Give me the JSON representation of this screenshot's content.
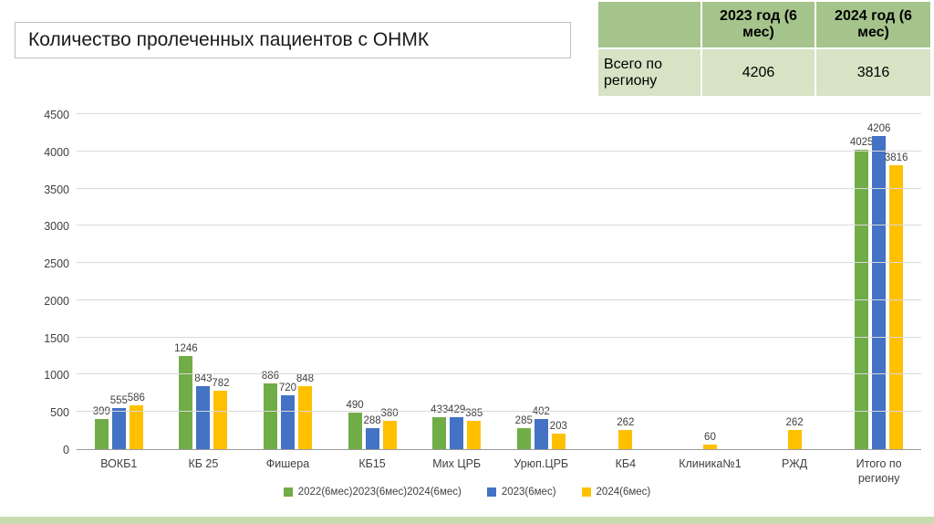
{
  "title": "Количество пролеченных пациентов с ОНМК",
  "table": {
    "headers": [
      "2023 год (6 мес)",
      "2024 год (6 мес)"
    ],
    "row_label": "Всего по региону",
    "values": [
      "4206",
      "3816"
    ]
  },
  "chart_data": {
    "type": "bar",
    "categories": [
      "ВОКБ1",
      "КБ 25",
      "Фишера",
      "КБ15",
      "Мих ЦРБ",
      "Урюп.ЦРБ",
      "КБ4",
      "Клиника№1",
      "РЖД",
      "Итого по региону"
    ],
    "series": [
      {
        "name": "2022(6мес)2023(6мес)2024(6мес)",
        "color": "#70AD47",
        "values": [
          399,
          1246,
          886,
          490,
          433,
          285,
          null,
          null,
          null,
          4025
        ]
      },
      {
        "name": "2023(6мес)",
        "color": "#4472C4",
        "values": [
          555,
          843,
          720,
          288,
          429,
          402,
          null,
          null,
          null,
          4206
        ]
      },
      {
        "name": "2024(6мес)",
        "color": "#FFC000",
        "values": [
          586,
          782,
          848,
          380,
          385,
          203,
          262,
          60,
          262,
          3816
        ]
      }
    ],
    "ylim": [
      0,
      4500
    ],
    "ytick_step": 500,
    "grid": true,
    "legend_position": "bottom"
  },
  "colors": {
    "table_header_bg": "#a5c48c",
    "table_body_bg": "#d6e3c5",
    "gridline": "#d9d9d9",
    "bottom_strip": "#c8dbae"
  }
}
